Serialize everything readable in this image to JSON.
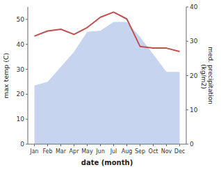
{
  "chart_data": {
    "type": "area",
    "x_label": "date (month)",
    "y_label": "max temp (C)",
    "y2_label": "med. precipitation\n (kg/m2)",
    "categories": [
      "Jan",
      "Feb",
      "Mar",
      "Apr",
      "May",
      "Jun",
      "Jul",
      "Aug",
      "Sep",
      "Oct",
      "Nov",
      "Dec"
    ],
    "series": [
      {
        "type": "area",
        "color": "#c6d4f0",
        "values": [
          23.5,
          25,
          31,
          37,
          45,
          45.5,
          49,
          49,
          43,
          36,
          29,
          29
        ]
      },
      {
        "type": "line",
        "color": "#c0504d",
        "axis": "y2",
        "values": [
          31.5,
          33,
          33.5,
          32,
          34,
          37,
          38.5,
          36.5,
          28.5,
          28,
          28,
          27
        ]
      }
    ],
    "ylim": [
      0,
      55
    ],
    "yticks": [
      0,
      10,
      20,
      30,
      40,
      50
    ],
    "y2lim": [
      0,
      40
    ],
    "y2ticks": [
      0,
      10,
      20,
      30,
      40
    ],
    "grid": false
  }
}
